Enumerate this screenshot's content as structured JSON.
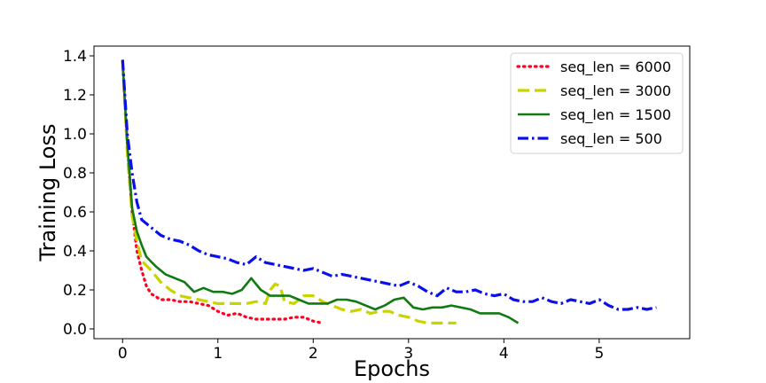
{
  "chart_data": {
    "type": "line",
    "title": "",
    "xlabel": "Epochs",
    "ylabel": "Training Loss",
    "xlim": [
      -0.3,
      5.95
    ],
    "ylim": [
      -0.05,
      1.45
    ],
    "xticks": [
      0,
      1,
      2,
      3,
      4,
      5
    ],
    "yticks": [
      0.0,
      0.2,
      0.4,
      0.6,
      0.8,
      1.0,
      1.2,
      1.4
    ],
    "ytick_labels": [
      "0.0",
      "0.2",
      "0.4",
      "0.6",
      "0.8",
      "1.0",
      "1.2",
      "1.4"
    ],
    "grid": false,
    "legend_position": "top-right",
    "series": [
      {
        "name": "seq_len = 6000",
        "color": "#ff0022",
        "style": "dotted",
        "x": [
          0.0,
          0.05,
          0.1,
          0.15,
          0.2,
          0.25,
          0.3,
          0.4,
          0.5,
          0.6,
          0.7,
          0.8,
          0.9,
          1.0,
          1.1,
          1.2,
          1.3,
          1.4,
          1.5,
          1.6,
          1.7,
          1.8,
          1.9,
          2.0,
          2.1
        ],
        "y": [
          1.37,
          0.95,
          0.6,
          0.4,
          0.3,
          0.22,
          0.18,
          0.15,
          0.15,
          0.14,
          0.14,
          0.13,
          0.12,
          0.09,
          0.07,
          0.08,
          0.06,
          0.05,
          0.05,
          0.05,
          0.05,
          0.06,
          0.06,
          0.04,
          0.03
        ]
      },
      {
        "name": "seq_len = 3000",
        "color": "#c8d400",
        "style": "dashed",
        "x": [
          0.0,
          0.05,
          0.1,
          0.15,
          0.2,
          0.3,
          0.4,
          0.5,
          0.6,
          0.7,
          0.8,
          0.9,
          1.0,
          1.1,
          1.2,
          1.3,
          1.4,
          1.5,
          1.55,
          1.6,
          1.65,
          1.7,
          1.8,
          1.9,
          2.0,
          2.1,
          2.2,
          2.3,
          2.4,
          2.5,
          2.6,
          2.7,
          2.8,
          2.9,
          3.0,
          3.1,
          3.2,
          3.3,
          3.4,
          3.5
        ],
        "y": [
          1.37,
          0.9,
          0.58,
          0.45,
          0.35,
          0.3,
          0.24,
          0.2,
          0.17,
          0.16,
          0.15,
          0.14,
          0.13,
          0.13,
          0.13,
          0.13,
          0.14,
          0.13,
          0.2,
          0.23,
          0.22,
          0.14,
          0.13,
          0.17,
          0.17,
          0.14,
          0.12,
          0.1,
          0.09,
          0.1,
          0.08,
          0.09,
          0.09,
          0.07,
          0.06,
          0.04,
          0.03,
          0.03,
          0.03,
          0.03
        ]
      },
      {
        "name": "seq_len = 1500",
        "color": "#117a11",
        "style": "solid",
        "x": [
          0.0,
          0.05,
          0.1,
          0.15,
          0.2,
          0.25,
          0.35,
          0.45,
          0.55,
          0.65,
          0.75,
          0.85,
          0.95,
          1.05,
          1.15,
          1.25,
          1.35,
          1.45,
          1.55,
          1.65,
          1.75,
          1.85,
          1.95,
          2.05,
          2.15,
          2.25,
          2.35,
          2.45,
          2.55,
          2.65,
          2.75,
          2.85,
          2.95,
          3.05,
          3.15,
          3.25,
          3.35,
          3.45,
          3.55,
          3.65,
          3.75,
          3.85,
          3.95,
          4.05,
          4.15
        ],
        "y": [
          1.37,
          0.95,
          0.62,
          0.5,
          0.43,
          0.37,
          0.32,
          0.28,
          0.26,
          0.24,
          0.19,
          0.21,
          0.19,
          0.19,
          0.18,
          0.2,
          0.26,
          0.2,
          0.17,
          0.17,
          0.17,
          0.15,
          0.13,
          0.13,
          0.13,
          0.15,
          0.15,
          0.14,
          0.12,
          0.1,
          0.12,
          0.15,
          0.16,
          0.11,
          0.1,
          0.11,
          0.11,
          0.12,
          0.11,
          0.1,
          0.08,
          0.08,
          0.08,
          0.06,
          0.03
        ]
      },
      {
        "name": "seq_len = 500",
        "color": "#0a10e8",
        "style": "dashdot",
        "x": [
          0.0,
          0.05,
          0.1,
          0.15,
          0.2,
          0.3,
          0.4,
          0.5,
          0.6,
          0.7,
          0.8,
          0.9,
          1.0,
          1.1,
          1.2,
          1.3,
          1.4,
          1.5,
          1.6,
          1.7,
          1.8,
          1.9,
          2.0,
          2.1,
          2.2,
          2.3,
          2.4,
          2.5,
          2.6,
          2.7,
          2.8,
          2.9,
          3.0,
          3.1,
          3.2,
          3.3,
          3.4,
          3.5,
          3.6,
          3.7,
          3.8,
          3.9,
          4.0,
          4.1,
          4.2,
          4.3,
          4.4,
          4.5,
          4.6,
          4.7,
          4.8,
          4.9,
          5.0,
          5.1,
          5.2,
          5.3,
          5.4,
          5.5,
          5.6
        ],
        "y": [
          1.38,
          1.0,
          0.8,
          0.65,
          0.56,
          0.52,
          0.48,
          0.46,
          0.45,
          0.43,
          0.4,
          0.38,
          0.37,
          0.36,
          0.34,
          0.33,
          0.37,
          0.34,
          0.33,
          0.32,
          0.31,
          0.3,
          0.31,
          0.29,
          0.27,
          0.28,
          0.27,
          0.26,
          0.25,
          0.24,
          0.23,
          0.22,
          0.24,
          0.22,
          0.19,
          0.17,
          0.21,
          0.19,
          0.19,
          0.2,
          0.18,
          0.17,
          0.18,
          0.15,
          0.14,
          0.14,
          0.16,
          0.14,
          0.13,
          0.15,
          0.14,
          0.13,
          0.15,
          0.12,
          0.1,
          0.1,
          0.11,
          0.1,
          0.11
        ]
      }
    ]
  }
}
